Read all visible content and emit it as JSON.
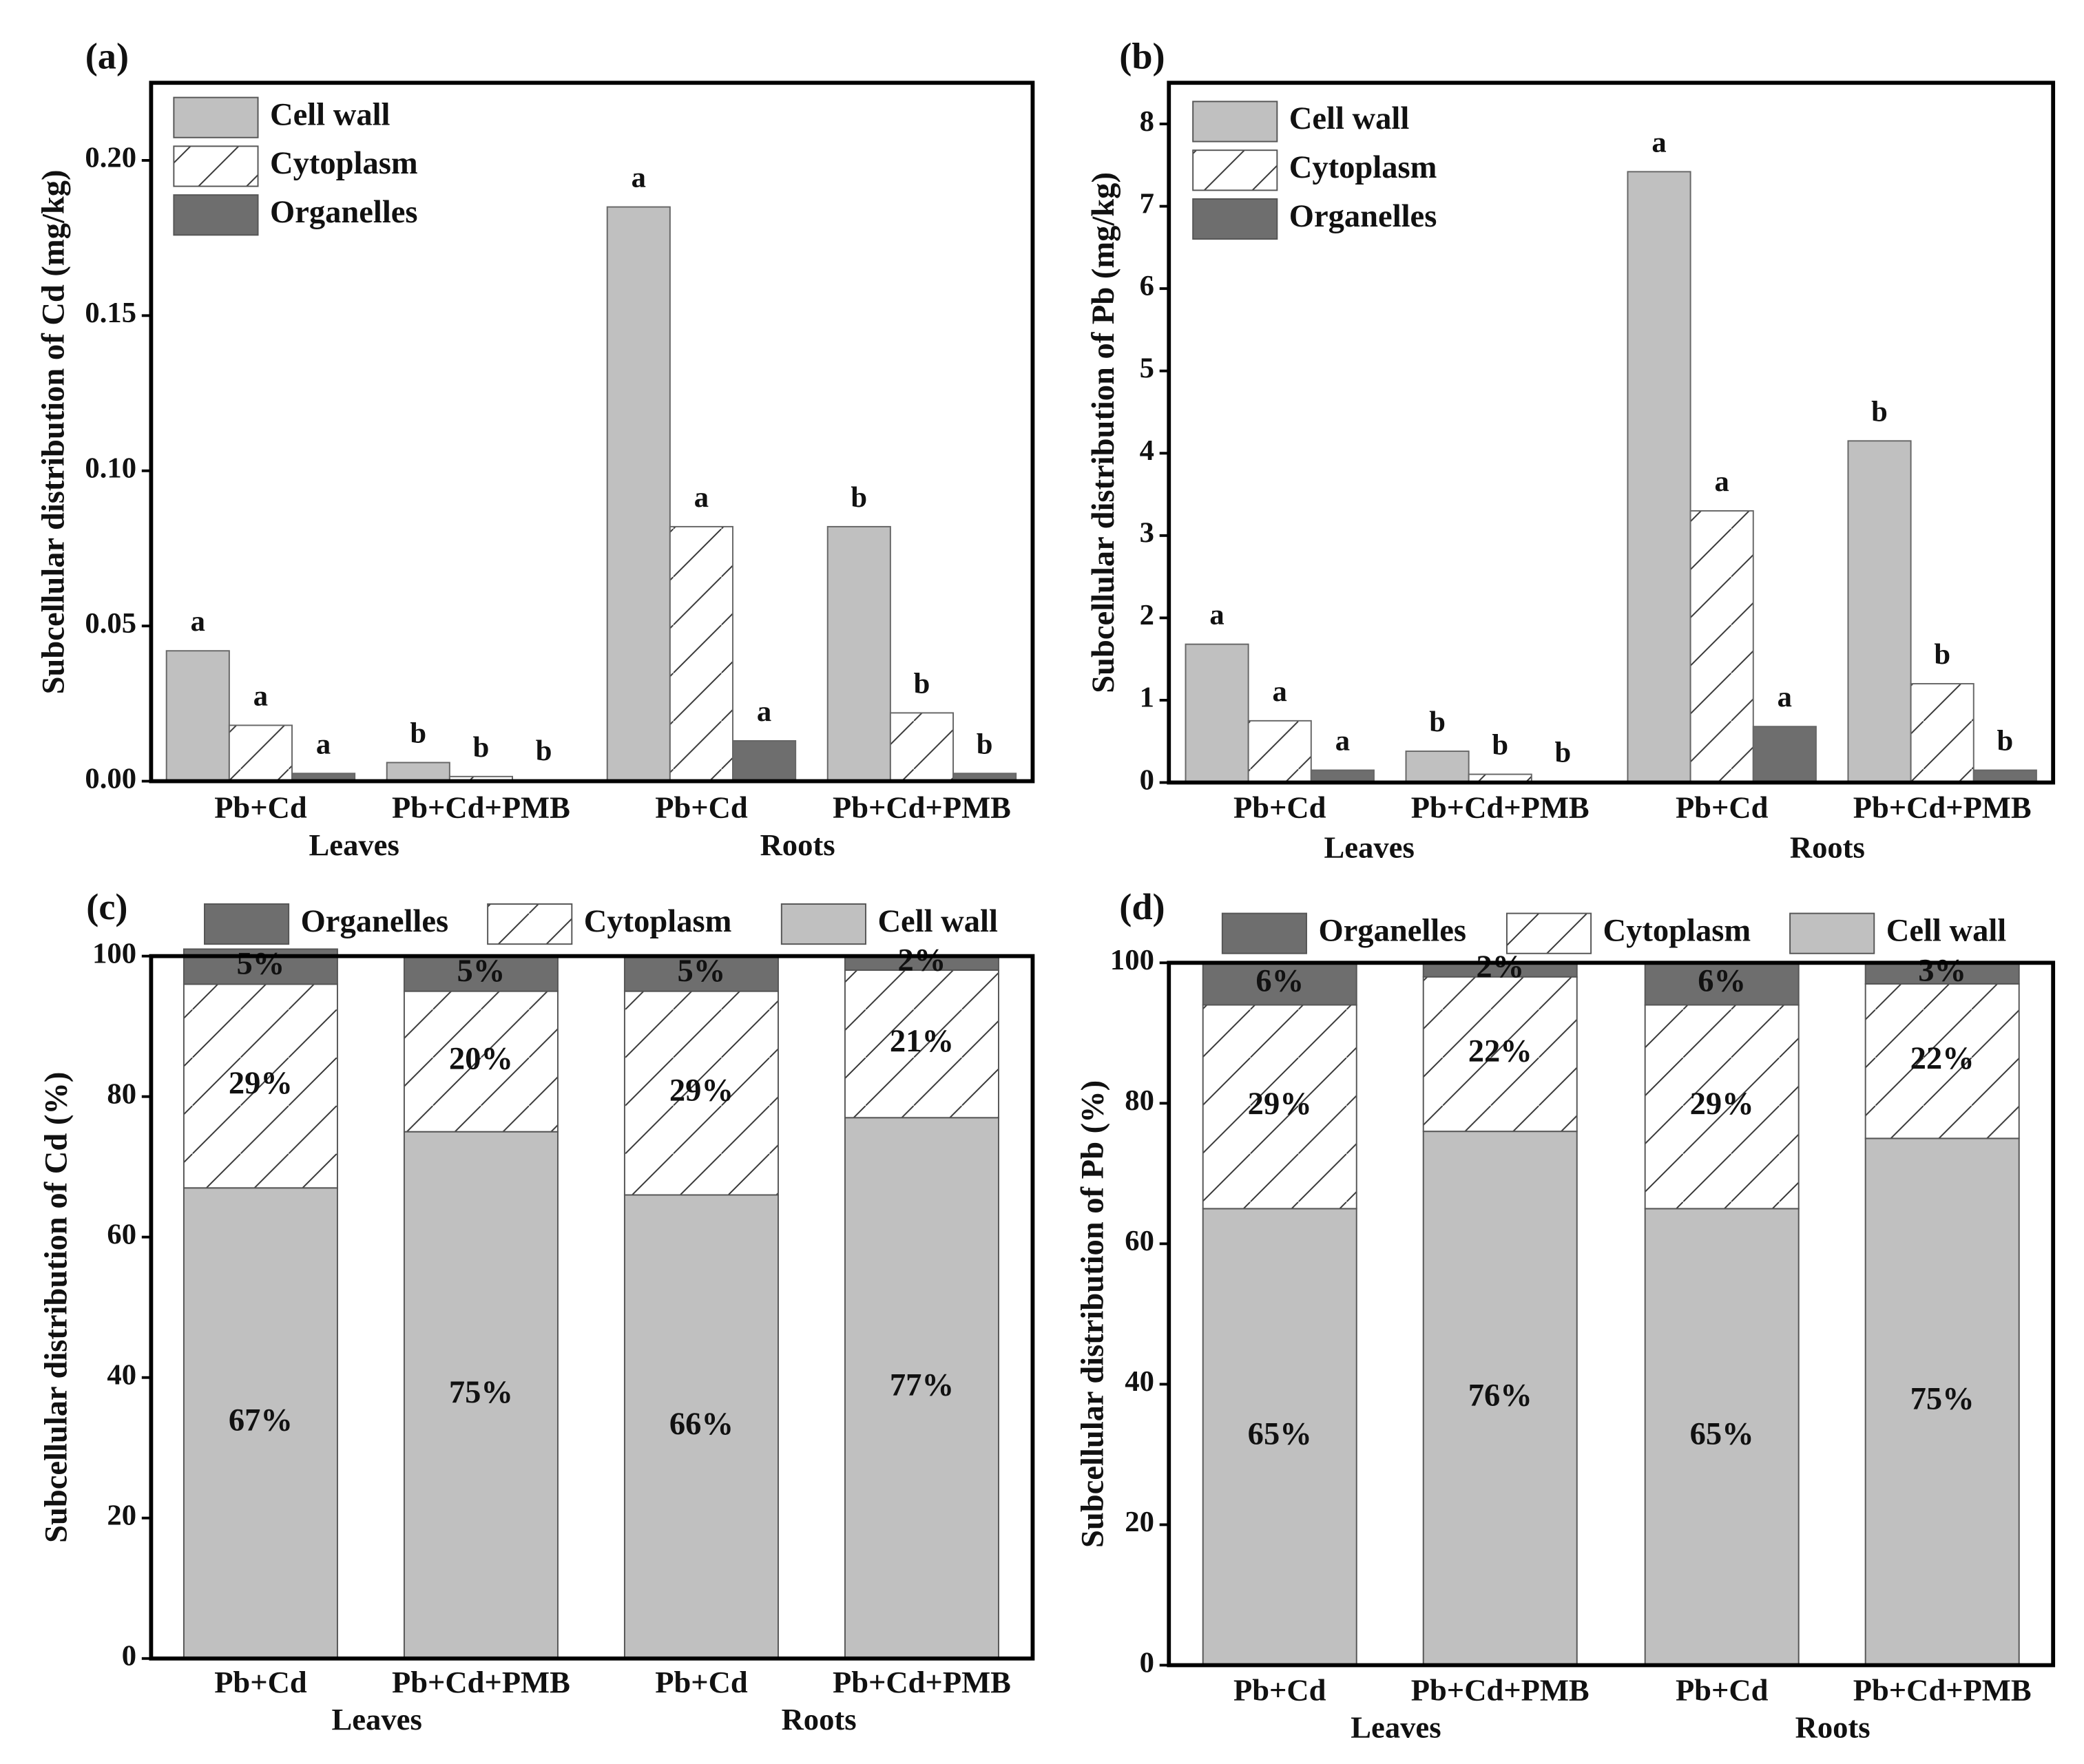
{
  "chart_data": [
    {
      "type": "bar",
      "panel_label": "(a)",
      "y_label": "Subcellular distribution of Cd (mg/kg)",
      "categories": [
        "Pb+Cd",
        "Pb+Cd+PMB",
        "Pb+Cd",
        "Pb+Cd+PMB"
      ],
      "groups": [
        "Leaves",
        "Roots"
      ],
      "ylim": [
        0,
        0.225
      ],
      "yticks": [
        {
          "value": 0,
          "label": "0.00"
        },
        0.05,
        {
          "value": 0.1,
          "label": "0.10"
        },
        0.15,
        {
          "value": 0.2,
          "label": "0.20"
        }
      ],
      "series": [
        {
          "name": "Cell wall",
          "color": "#c0c0c0",
          "values": [
            0.042,
            0.006,
            0.185,
            0.082
          ],
          "letters": [
            "a",
            "b",
            "a",
            "b"
          ]
        },
        {
          "name": "Cytoplasm",
          "color": "#ffffff",
          "hatch": true,
          "values": [
            0.018,
            0.0015,
            0.082,
            0.022
          ],
          "letters": [
            "a",
            "b",
            "a",
            "b"
          ]
        },
        {
          "name": "Organelles",
          "color": "#6e6e6e",
          "values": [
            0.0025,
            0.0003,
            0.013,
            0.0025
          ],
          "letters": [
            "a",
            "b",
            "a",
            "b"
          ]
        }
      ]
    },
    {
      "type": "bar",
      "panel_label": "(b)",
      "y_label": "Subcellular distribution of Pb (mg/kg)",
      "categories": [
        "Pb+Cd",
        "Pb+Cd+PMB",
        "Pb+Cd",
        "Pb+Cd+PMB"
      ],
      "groups": [
        "Leaves",
        "Roots"
      ],
      "ylim": [
        0,
        8.5
      ],
      "yticks": [
        0,
        1,
        2,
        3,
        4,
        5,
        6,
        7,
        8
      ],
      "series": [
        {
          "name": "Cell wall",
          "color": "#c0c0c0",
          "values": [
            1.68,
            0.38,
            7.42,
            4.15
          ],
          "letters": [
            "a",
            "b",
            "a",
            "b"
          ]
        },
        {
          "name": "Cytoplasm",
          "color": "#ffffff",
          "hatch": true,
          "values": [
            0.75,
            0.1,
            3.3,
            1.2
          ],
          "letters": [
            "a",
            "b",
            "a",
            "b"
          ]
        },
        {
          "name": "Organelles",
          "color": "#6e6e6e",
          "values": [
            0.15,
            0.01,
            0.68,
            0.15
          ],
          "letters": [
            "a",
            "b",
            "a",
            "b"
          ]
        }
      ]
    },
    {
      "type": "stacked_bar",
      "panel_label": "(c)",
      "y_label": "Subcellular distribution of Cd (%)",
      "categories": [
        "Pb+Cd",
        "Pb+Cd+PMB",
        "Pb+Cd",
        "Pb+Cd+PMB"
      ],
      "groups": [
        "Leaves",
        "Roots"
      ],
      "ylim": [
        0,
        100
      ],
      "yticks": [
        0,
        20,
        40,
        60,
        80,
        100
      ],
      "series": [
        {
          "name": "Organelles",
          "color": "#6e6e6e",
          "values": [
            5,
            5,
            5,
            2
          ],
          "value_labels": [
            "5%",
            "5%",
            "5%",
            "2%"
          ]
        },
        {
          "name": "Cytoplasm",
          "color": "#ffffff",
          "hatch": true,
          "values": [
            29,
            20,
            29,
            21
          ],
          "value_labels": [
            "29%",
            "20%",
            "29%",
            "21%"
          ]
        },
        {
          "name": "Cell wall",
          "color": "#c0c0c0",
          "values": [
            67,
            75,
            66,
            77
          ],
          "value_labels": [
            "67%",
            "75%",
            "66%",
            "77%"
          ]
        }
      ]
    },
    {
      "type": "stacked_bar",
      "panel_label": "(d)",
      "y_label": "Subcellular distribution of Pb (%)",
      "categories": [
        "Pb+Cd",
        "Pb+Cd+PMB",
        "Pb+Cd",
        "Pb+Cd+PMB"
      ],
      "groups": [
        "Leaves",
        "Roots"
      ],
      "ylim": [
        0,
        100
      ],
      "yticks": [
        0,
        20,
        40,
        60,
        80,
        100
      ],
      "series": [
        {
          "name": "Organelles",
          "color": "#6e6e6e",
          "values": [
            6,
            2,
            6,
            3
          ],
          "value_labels": [
            "6%",
            "2%",
            "6%",
            "3%"
          ]
        },
        {
          "name": "Cytoplasm",
          "color": "#ffffff",
          "hatch": true,
          "values": [
            29,
            22,
            29,
            22
          ],
          "value_labels": [
            "29%",
            "22%",
            "29%",
            "22%"
          ]
        },
        {
          "name": "Cell wall",
          "color": "#c0c0c0",
          "values": [
            65,
            76,
            65,
            75
          ],
          "value_labels": [
            "65%",
            "76%",
            "65%",
            "75%"
          ]
        }
      ]
    }
  ]
}
